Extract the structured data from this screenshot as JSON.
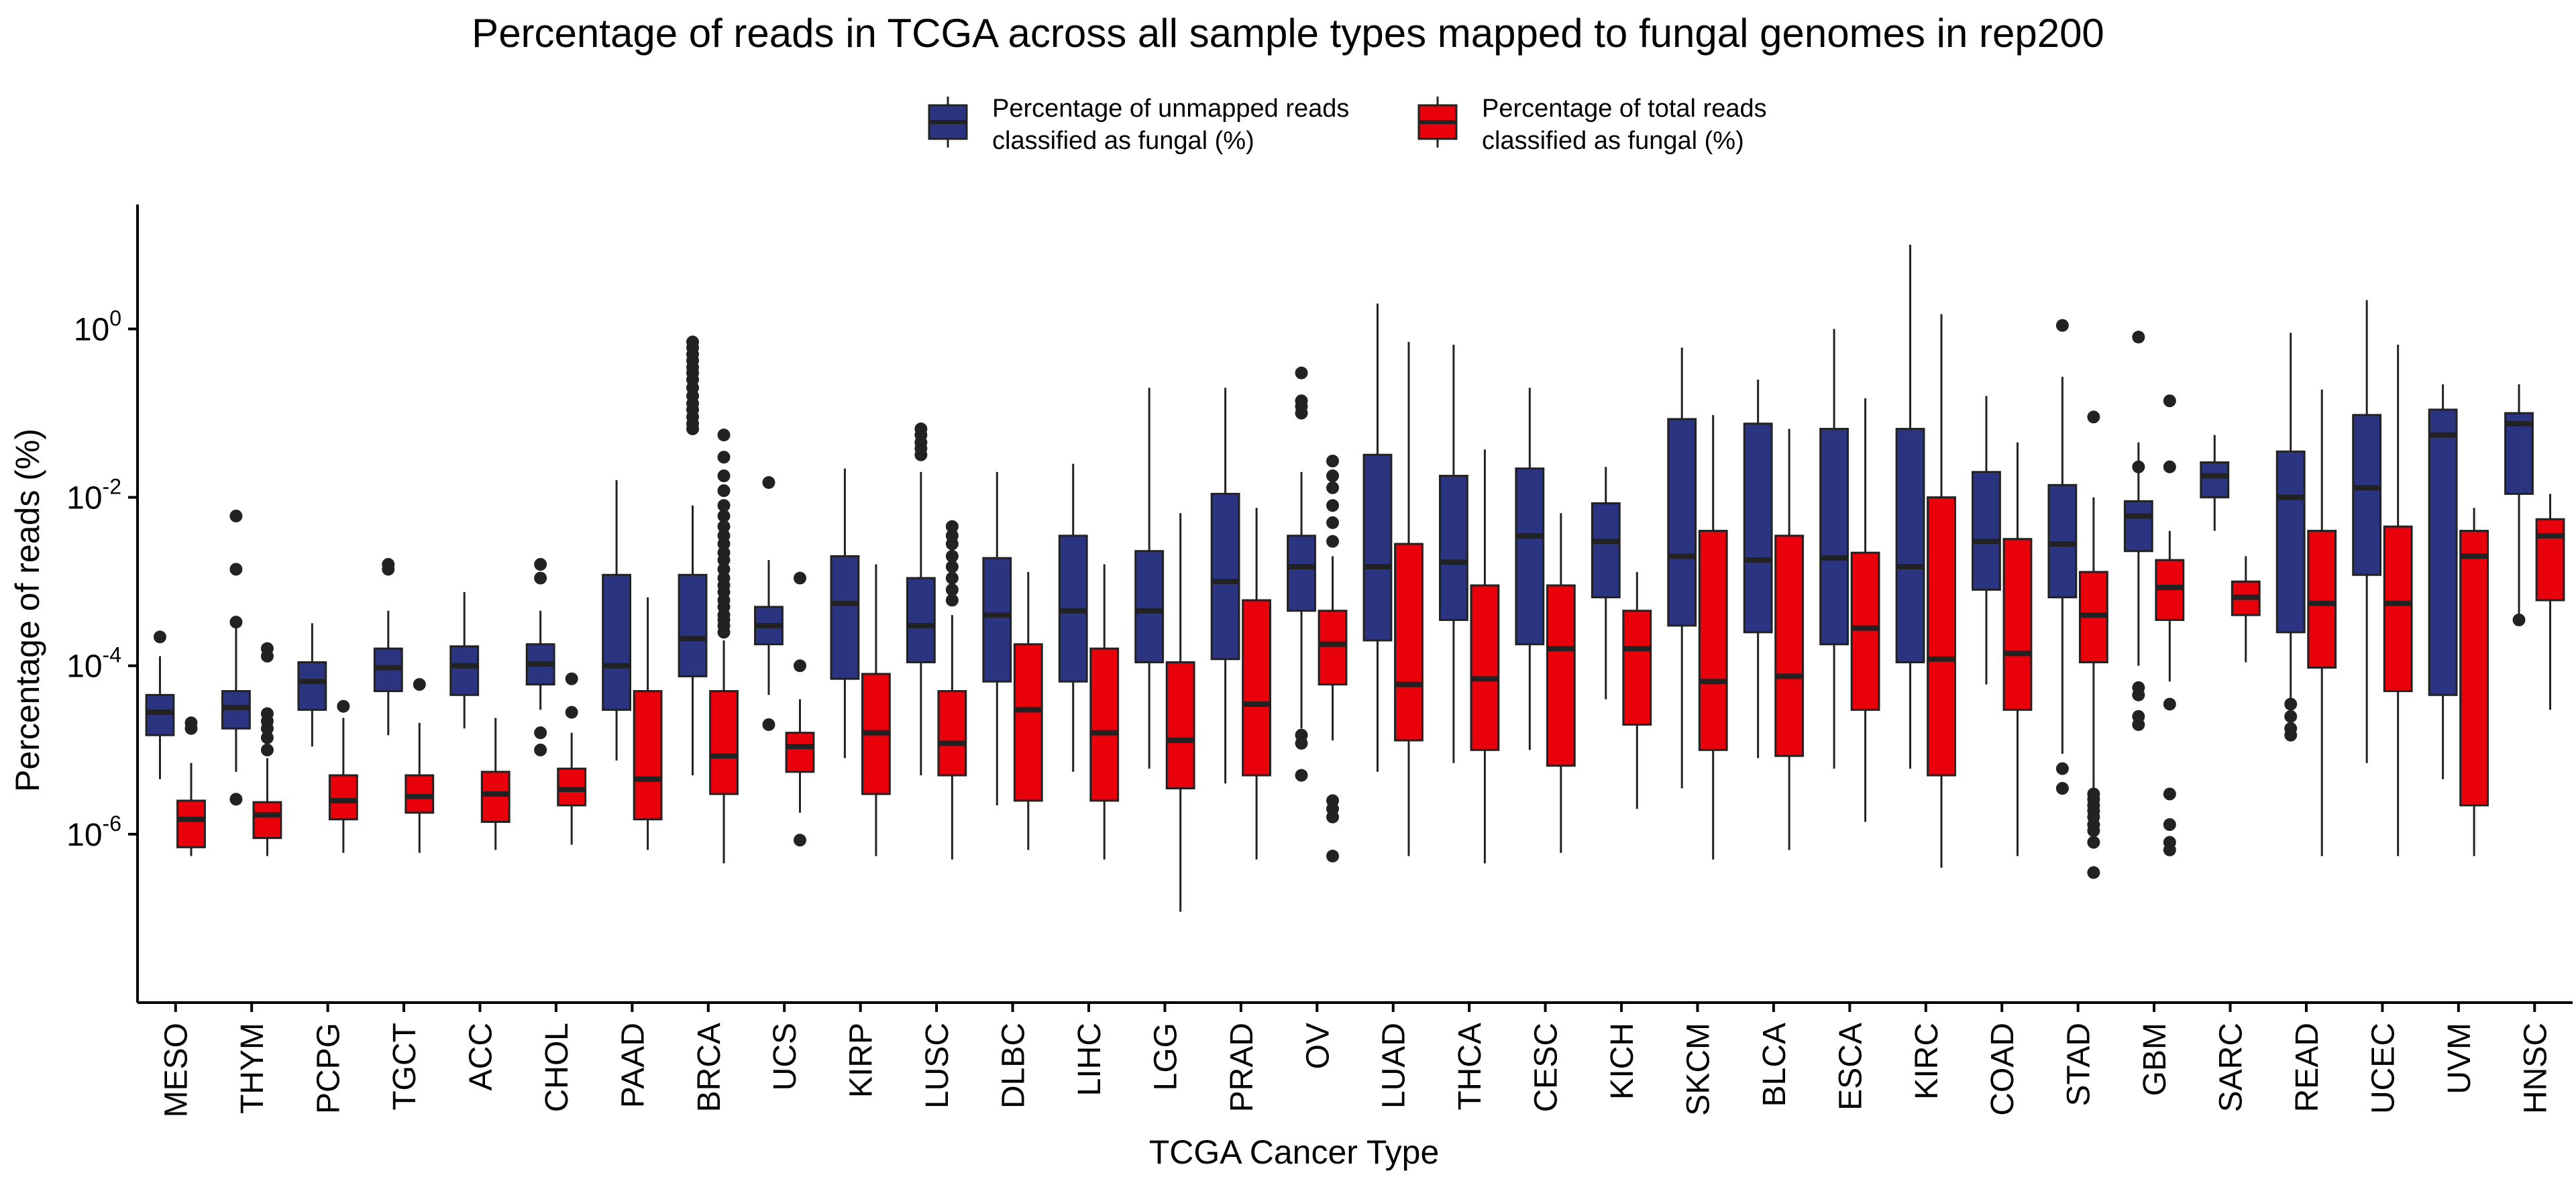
{
  "chart_data": {
    "type": "box",
    "title": "Percentage of reads in TCGA across all sample types mapped to fungal genomes in rep200",
    "xlabel": "TCGA Cancer Type",
    "ylabel": "Percentage of reads (%)",
    "yscale": "log10",
    "ylim": [
      1e-08,
      30
    ],
    "yticks": [
      {
        "value": 1e-06,
        "base": "10",
        "exp": "-6"
      },
      {
        "value": 0.0001,
        "base": "10",
        "exp": "-4"
      },
      {
        "value": 0.01,
        "base": "10",
        "exp": "-2"
      },
      {
        "value": 1,
        "base": "10",
        "exp": "0"
      }
    ],
    "grid": false,
    "legend_position": "top",
    "categories": [
      "MESO",
      "THYM",
      "PCPG",
      "TGCT",
      "ACC",
      "CHOL",
      "PAAD",
      "BRCA",
      "UCS",
      "KIRP",
      "LUSC",
      "DLBC",
      "LIHC",
      "LGG",
      "PRAD",
      "OV",
      "LUAD",
      "THCA",
      "CESC",
      "KICH",
      "SKCM",
      "BLCA",
      "ESCA",
      "KIRC",
      "COAD",
      "STAD",
      "GBM",
      "SARC",
      "READ",
      "UCEC",
      "UVM",
      "HNSC"
    ],
    "series": [
      {
        "name": "Percentage of unmapped reads classified as fungal (%)",
        "legend_lines": [
          "Percentage of unmapped reads",
          "classified as fungal (%)"
        ],
        "color": "#2B3480",
        "boxes": [
          {
            "whisker_low": 4.5e-06,
            "q1": 1.5e-05,
            "median": 2.8e-05,
            "q3": 4.5e-05,
            "whisker_high": 0.00013,
            "outliers": [
              0.00022
            ]
          },
          {
            "whisker_low": 5.5e-06,
            "q1": 1.8e-05,
            "median": 3.2e-05,
            "q3": 5e-05,
            "whisker_high": 0.0003,
            "outliers": [
              0.00033,
              0.0014,
              0.006,
              2.6e-06
            ]
          },
          {
            "whisker_low": 1.1e-05,
            "q1": 3e-05,
            "median": 6.5e-05,
            "q3": 0.00011,
            "whisker_high": 0.00032,
            "outliers": []
          },
          {
            "whisker_low": 1.5e-05,
            "q1": 5e-05,
            "median": 9.5e-05,
            "q3": 0.00016,
            "whisker_high": 0.00045,
            "outliers": [
              0.0014,
              0.0016
            ]
          },
          {
            "whisker_low": 1.8e-05,
            "q1": 4.5e-05,
            "median": 0.0001,
            "q3": 0.00017,
            "whisker_high": 0.00075,
            "outliers": []
          },
          {
            "whisker_low": 3e-05,
            "q1": 6e-05,
            "median": 0.000105,
            "q3": 0.00018,
            "whisker_high": 0.00045,
            "outliers": [
              1e-05,
              1.6e-05,
              0.0011,
              0.0016
            ]
          },
          {
            "whisker_low": 7.5e-06,
            "q1": 3e-05,
            "median": 0.0001,
            "q3": 0.0012,
            "whisker_high": 0.016,
            "outliers": []
          },
          {
            "whisker_low": 5e-06,
            "q1": 7.5e-05,
            "median": 0.00021,
            "q3": 0.0012,
            "whisker_high": 0.008,
            "outliers": [
              0.7,
              0.6,
              0.5,
              0.42,
              0.35,
              0.3,
              0.25,
              0.2,
              0.16,
              0.13,
              0.11,
              0.09,
              0.075,
              0.065
            ]
          },
          {
            "whisker_low": 4.5e-05,
            "q1": 0.00018,
            "median": 0.0003,
            "q3": 0.0005,
            "whisker_high": 0.0018,
            "outliers": [
              2e-05,
              0.015
            ]
          },
          {
            "whisker_low": 8e-06,
            "q1": 7e-05,
            "median": 0.00055,
            "q3": 0.002,
            "whisker_high": 0.022,
            "outliers": []
          },
          {
            "whisker_low": 5e-06,
            "q1": 0.00011,
            "median": 0.0003,
            "q3": 0.0011,
            "whisker_high": 0.02,
            "outliers": [
              0.032,
              0.038,
              0.045,
              0.055,
              0.065
            ]
          },
          {
            "whisker_low": 2.2e-06,
            "q1": 6.5e-05,
            "median": 0.0004,
            "q3": 0.0019,
            "whisker_high": 0.02,
            "outliers": []
          },
          {
            "whisker_low": 5.5e-06,
            "q1": 6.5e-05,
            "median": 0.00045,
            "q3": 0.0035,
            "whisker_high": 0.025,
            "outliers": []
          },
          {
            "whisker_low": 6e-06,
            "q1": 0.00011,
            "median": 0.00045,
            "q3": 0.0023,
            "whisker_high": 0.2,
            "outliers": []
          },
          {
            "whisker_low": 4e-06,
            "q1": 0.00012,
            "median": 0.001,
            "q3": 0.011,
            "whisker_high": 0.2,
            "outliers": []
          },
          {
            "whisker_low": 1.8e-05,
            "q1": 0.00045,
            "median": 0.0015,
            "q3": 0.0035,
            "whisker_high": 0.02,
            "outliers": [
              0.3,
              0.14,
              0.12,
              0.1,
              1.5e-05,
              1.2e-05,
              5e-06
            ]
          },
          {
            "whisker_low": 5.5e-06,
            "q1": 0.0002,
            "median": 0.0015,
            "q3": 0.032,
            "whisker_high": 2.0,
            "outliers": []
          },
          {
            "whisker_low": 7e-06,
            "q1": 0.00035,
            "median": 0.0017,
            "q3": 0.018,
            "whisker_high": 0.65,
            "outliers": []
          },
          {
            "whisker_low": 1e-05,
            "q1": 0.00018,
            "median": 0.0035,
            "q3": 0.022,
            "whisker_high": 0.2,
            "outliers": []
          },
          {
            "whisker_low": 4e-05,
            "q1": 0.00065,
            "median": 0.003,
            "q3": 0.0085,
            "whisker_high": 0.023,
            "outliers": []
          },
          {
            "whisker_low": 3.5e-06,
            "q1": 0.0003,
            "median": 0.002,
            "q3": 0.085,
            "whisker_high": 0.6,
            "outliers": []
          },
          {
            "whisker_low": 8e-06,
            "q1": 0.00025,
            "median": 0.0018,
            "q3": 0.075,
            "whisker_high": 0.25,
            "outliers": []
          },
          {
            "whisker_low": 6e-06,
            "q1": 0.00018,
            "median": 0.0019,
            "q3": 0.065,
            "whisker_high": 1.0,
            "outliers": []
          },
          {
            "whisker_low": 6e-06,
            "q1": 0.00011,
            "median": 0.0015,
            "q3": 0.065,
            "whisker_high": 10.0,
            "outliers": []
          },
          {
            "whisker_low": 6e-05,
            "q1": 0.0008,
            "median": 0.003,
            "q3": 0.02,
            "whisker_high": 0.16,
            "outliers": []
          },
          {
            "whisker_low": 9e-06,
            "q1": 0.00065,
            "median": 0.0028,
            "q3": 0.014,
            "whisker_high": 0.27,
            "outliers": [
              1.1,
              6e-06,
              3.5e-06
            ]
          },
          {
            "whisker_low": 0.0001,
            "q1": 0.0023,
            "median": 0.006,
            "q3": 0.009,
            "whisker_high": 0.045,
            "outliers": [
              0.8,
              0.023,
              5.5e-05,
              4.5e-05,
              2.5e-05,
              2e-05
            ]
          },
          {
            "whisker_low": 0.004,
            "q1": 0.01,
            "median": 0.018,
            "q3": 0.026,
            "whisker_high": 0.055,
            "outliers": []
          },
          {
            "whisker_low": 4e-05,
            "q1": 0.00025,
            "median": 0.01,
            "q3": 0.035,
            "whisker_high": 0.9,
            "outliers": [
              3.5e-05,
              2.5e-05,
              1.8e-05,
              1.5e-05
            ]
          },
          {
            "whisker_low": 7e-06,
            "q1": 0.0012,
            "median": 0.013,
            "q3": 0.095,
            "whisker_high": 2.2,
            "outliers": []
          },
          {
            "whisker_low": 4.5e-06,
            "q1": 4.5e-05,
            "median": 0.055,
            "q3": 0.11,
            "whisker_high": 0.22,
            "outliers": []
          },
          {
            "whisker_low": 0.00035,
            "q1": 0.011,
            "median": 0.075,
            "q3": 0.1,
            "whisker_high": 0.22,
            "outliers": [
              0.00035
            ]
          }
        ]
      },
      {
        "name": "Percentage of total reads classified as fungal (%)",
        "legend_lines": [
          "Percentage of total reads",
          "classified as fungal (%)"
        ],
        "color": "#E8000B",
        "boxes": [
          {
            "whisker_low": 5.5e-07,
            "q1": 7e-07,
            "median": 1.5e-06,
            "q3": 2.5e-06,
            "whisker_high": 7e-06,
            "outliers": [
              1.8e-05,
              2.1e-05
            ]
          },
          {
            "whisker_low": 5.5e-07,
            "q1": 9e-07,
            "median": 1.7e-06,
            "q3": 2.4e-06,
            "whisker_high": 8e-06,
            "outliers": [
              1e-05,
              1.4e-05,
              1.8e-05,
              2.2e-05,
              2.7e-05,
              0.00013,
              0.00016
            ]
          },
          {
            "whisker_low": 6e-07,
            "q1": 1.5e-06,
            "median": 2.5e-06,
            "q3": 5e-06,
            "whisker_high": 2.4e-05,
            "outliers": [
              3.3e-05
            ]
          },
          {
            "whisker_low": 6e-07,
            "q1": 1.8e-06,
            "median": 2.8e-06,
            "q3": 5e-06,
            "whisker_high": 2.1e-05,
            "outliers": [
              6e-05
            ]
          },
          {
            "whisker_low": 6.5e-07,
            "q1": 1.4e-06,
            "median": 3e-06,
            "q3": 5.5e-06,
            "whisker_high": 2.4e-05,
            "outliers": []
          },
          {
            "whisker_low": 7.5e-07,
            "q1": 2.2e-06,
            "median": 3.4e-06,
            "q3": 6e-06,
            "whisker_high": 1.6e-05,
            "outliers": [
              2.8e-05,
              7e-05
            ]
          },
          {
            "whisker_low": 6.5e-07,
            "q1": 1.5e-06,
            "median": 4.5e-06,
            "q3": 5e-05,
            "whisker_high": 0.00065,
            "outliers": []
          },
          {
            "whisker_low": 4.5e-07,
            "q1": 3e-06,
            "median": 8.5e-06,
            "q3": 5e-05,
            "whisker_high": 0.0002,
            "outliers": [
              0.00025,
              0.0003,
              0.00035,
              0.0004,
              0.0005,
              0.0006,
              0.00075,
              0.0009,
              0.0011,
              0.0014,
              0.0018,
              0.0022,
              0.0028,
              0.0035,
              0.0045,
              0.006,
              0.008,
              0.012,
              0.018,
              0.03,
              0.055
            ]
          },
          {
            "whisker_low": 1.8e-06,
            "q1": 5.5e-06,
            "median": 1.1e-05,
            "q3": 1.6e-05,
            "whisker_high": 4e-05,
            "outliers": [
              0.0001,
              0.0011,
              8.5e-07
            ]
          },
          {
            "whisker_low": 5.5e-07,
            "q1": 3e-06,
            "median": 1.6e-05,
            "q3": 8e-05,
            "whisker_high": 0.0016,
            "outliers": []
          },
          {
            "whisker_low": 5e-07,
            "q1": 5e-06,
            "median": 1.2e-05,
            "q3": 5e-05,
            "whisker_high": 0.0004,
            "outliers": [
              0.0006,
              0.0008,
              0.0011,
              0.0015,
              0.002,
              0.0028,
              0.0035,
              0.0045
            ]
          },
          {
            "whisker_low": 6.5e-07,
            "q1": 2.5e-06,
            "median": 3e-05,
            "q3": 0.00018,
            "whisker_high": 0.0013,
            "outliers": []
          },
          {
            "whisker_low": 5e-07,
            "q1": 2.5e-06,
            "median": 1.6e-05,
            "q3": 0.00016,
            "whisker_high": 0.0016,
            "outliers": []
          },
          {
            "whisker_low": 1.2e-07,
            "q1": 3.5e-06,
            "median": 1.3e-05,
            "q3": 0.00011,
            "whisker_high": 0.0065,
            "outliers": []
          },
          {
            "whisker_low": 5e-07,
            "q1": 5e-06,
            "median": 3.5e-05,
            "q3": 0.0006,
            "whisker_high": 0.0075,
            "outliers": []
          },
          {
            "whisker_low": 1.3e-05,
            "q1": 6e-05,
            "median": 0.00018,
            "q3": 0.00045,
            "whisker_high": 0.002,
            "outliers": [
              0.003,
              0.005,
              0.008,
              0.013,
              0.018,
              0.027,
              2.5e-06,
              2e-06,
              1.6e-06,
              5.5e-07
            ]
          },
          {
            "whisker_low": 5.5e-07,
            "q1": 1.3e-05,
            "median": 6e-05,
            "q3": 0.0028,
            "whisker_high": 0.7,
            "outliers": []
          },
          {
            "whisker_low": 4.5e-07,
            "q1": 1e-05,
            "median": 7e-05,
            "q3": 0.0009,
            "whisker_high": 0.037,
            "outliers": []
          },
          {
            "whisker_low": 6e-07,
            "q1": 6.5e-06,
            "median": 0.00016,
            "q3": 0.0009,
            "whisker_high": 0.0065,
            "outliers": []
          },
          {
            "whisker_low": 2e-06,
            "q1": 2e-05,
            "median": 0.00016,
            "q3": 0.00045,
            "whisker_high": 0.0013,
            "outliers": []
          },
          {
            "whisker_low": 5e-07,
            "q1": 1e-05,
            "median": 6.5e-05,
            "q3": 0.004,
            "whisker_high": 0.095,
            "outliers": []
          },
          {
            "whisker_low": 6.5e-07,
            "q1": 8.5e-06,
            "median": 7.5e-05,
            "q3": 0.0035,
            "whisker_high": 0.065,
            "outliers": []
          },
          {
            "whisker_low": 1.4e-06,
            "q1": 3e-05,
            "median": 0.00028,
            "q3": 0.0022,
            "whisker_high": 0.15,
            "outliers": []
          },
          {
            "whisker_low": 4e-07,
            "q1": 5e-06,
            "median": 0.00012,
            "q3": 0.01,
            "whisker_high": 1.5,
            "outliers": []
          },
          {
            "whisker_low": 5.5e-07,
            "q1": 3e-05,
            "median": 0.00014,
            "q3": 0.0032,
            "whisker_high": 0.045,
            "outliers": []
          },
          {
            "whisker_low": 3.5e-06,
            "q1": 0.00011,
            "median": 0.0004,
            "q3": 0.0013,
            "whisker_high": 0.01,
            "outliers": [
              0.09,
              3e-06,
              2.6e-06,
              2.2e-06,
              1.9e-06,
              1.6e-06,
              1.3e-06,
              1.1e-06,
              8e-07,
              3.5e-07
            ]
          },
          {
            "whisker_low": 6.5e-05,
            "q1": 0.00035,
            "median": 0.00085,
            "q3": 0.0018,
            "whisker_high": 0.004,
            "outliers": [
              0.14,
              0.023,
              3.5e-05,
              3e-06,
              1.3e-06,
              8e-07,
              6.5e-07
            ]
          },
          {
            "whisker_low": 0.00011,
            "q1": 0.0004,
            "median": 0.00065,
            "q3": 0.001,
            "whisker_high": 0.002,
            "outliers": []
          },
          {
            "whisker_low": 5.5e-07,
            "q1": 9.5e-05,
            "median": 0.00055,
            "q3": 0.004,
            "whisker_high": 0.19,
            "outliers": []
          },
          {
            "whisker_low": 5.5e-07,
            "q1": 5e-05,
            "median": 0.00055,
            "q3": 0.0045,
            "whisker_high": 0.65,
            "outliers": []
          },
          {
            "whisker_low": 5.5e-07,
            "q1": 2.2e-06,
            "median": 0.002,
            "q3": 0.004,
            "whisker_high": 0.0075,
            "outliers": []
          },
          {
            "whisker_low": 3e-05,
            "q1": 0.0006,
            "median": 0.0035,
            "q3": 0.0055,
            "whisker_high": 0.011,
            "outliers": []
          }
        ]
      }
    ]
  }
}
